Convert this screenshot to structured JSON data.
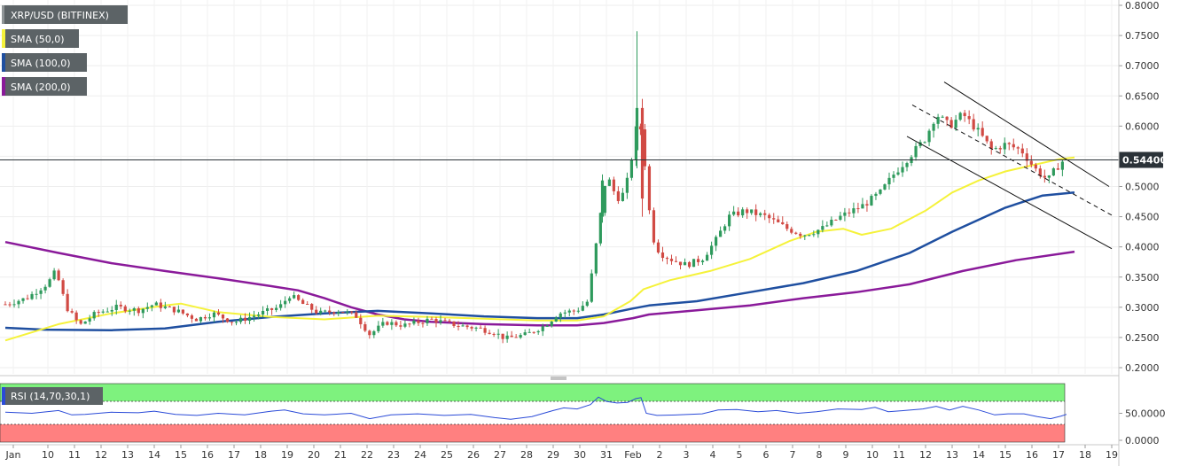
{
  "chart_data": [
    {
      "type": "candlestick",
      "symbol_label": "XRP/USD (BITFINEX)",
      "indicators": [
        {
          "label": "SMA (50,0)",
          "color": "#f5f23a"
        },
        {
          "label": "SMA (100,0)",
          "color": "#1f4fa0"
        },
        {
          "label": "SMA (200,0)",
          "color": "#8a1a9a"
        }
      ],
      "current_price_label": "0.54400",
      "current_price": 0.544,
      "ylim": [
        0.18,
        0.805
      ],
      "xlim": [
        0,
        40.6
      ],
      "y_ticks": [
        {
          "value": 0.8,
          "label": "0.8000"
        },
        {
          "value": 0.75,
          "label": "0.7500"
        },
        {
          "value": 0.7,
          "label": "0.7000"
        },
        {
          "value": 0.65,
          "label": "0.6500"
        },
        {
          "value": 0.6,
          "label": "0.6000"
        },
        {
          "value": 0.55,
          "label": "0.5500"
        },
        {
          "value": 0.5,
          "label": "0.5000"
        },
        {
          "value": 0.45,
          "label": "0.4500"
        },
        {
          "value": 0.4,
          "label": "0.4000"
        },
        {
          "value": 0.35,
          "label": "0.3500"
        },
        {
          "value": 0.3,
          "label": "0.3000"
        },
        {
          "value": 0.25,
          "label": "0.2500"
        },
        {
          "value": 0.2,
          "label": "0.2000"
        }
      ],
      "x_ticks": [
        {
          "x": 0.3,
          "label": "Jan"
        },
        {
          "x": 1.6,
          "label": "10"
        },
        {
          "x": 2.6,
          "label": "11"
        },
        {
          "x": 3.6,
          "label": "12"
        },
        {
          "x": 4.6,
          "label": "13"
        },
        {
          "x": 5.6,
          "label": "14"
        },
        {
          "x": 6.6,
          "label": "15"
        },
        {
          "x": 7.6,
          "label": "16"
        },
        {
          "x": 8.6,
          "label": "17"
        },
        {
          "x": 9.6,
          "label": "18"
        },
        {
          "x": 10.6,
          "label": "19"
        },
        {
          "x": 11.6,
          "label": "20"
        },
        {
          "x": 12.6,
          "label": "21"
        },
        {
          "x": 13.6,
          "label": "22"
        },
        {
          "x": 14.6,
          "label": "23"
        },
        {
          "x": 15.6,
          "label": "24"
        },
        {
          "x": 16.6,
          "label": "25"
        },
        {
          "x": 17.6,
          "label": "26"
        },
        {
          "x": 18.6,
          "label": "27"
        },
        {
          "x": 19.6,
          "label": "28"
        },
        {
          "x": 20.6,
          "label": "29"
        },
        {
          "x": 21.6,
          "label": "30"
        },
        {
          "x": 22.6,
          "label": "31"
        },
        {
          "x": 23.6,
          "label": "Feb"
        },
        {
          "x": 24.6,
          "label": "2"
        },
        {
          "x": 25.6,
          "label": "3"
        },
        {
          "x": 26.6,
          "label": "4"
        },
        {
          "x": 27.6,
          "label": "5"
        },
        {
          "x": 28.6,
          "label": "6"
        },
        {
          "x": 29.6,
          "label": "7"
        },
        {
          "x": 30.6,
          "label": "8"
        },
        {
          "x": 31.6,
          "label": "9"
        },
        {
          "x": 32.6,
          "label": "10"
        },
        {
          "x": 33.6,
          "label": "11"
        },
        {
          "x": 34.6,
          "label": "12"
        },
        {
          "x": 35.6,
          "label": "13"
        },
        {
          "x": 36.6,
          "label": "14"
        },
        {
          "x": 37.6,
          "label": "15"
        },
        {
          "x": 38.6,
          "label": "16"
        },
        {
          "x": 39.6,
          "label": "17"
        },
        {
          "x": 40.6,
          "label": "18"
        },
        {
          "x": 41.6,
          "label": "19"
        }
      ],
      "ohlc_anchors": [
        [
          0.0,
          0.305
        ],
        [
          0.8,
          0.315
        ],
        [
          1.6,
          0.34
        ],
        [
          1.9,
          0.36
        ],
        [
          2.3,
          0.3
        ],
        [
          2.8,
          0.27
        ],
        [
          3.4,
          0.29
        ],
        [
          4.2,
          0.3
        ],
        [
          5.0,
          0.295
        ],
        [
          5.6,
          0.305
        ],
        [
          6.4,
          0.295
        ],
        [
          7.2,
          0.28
        ],
        [
          7.8,
          0.29
        ],
        [
          8.6,
          0.275
        ],
        [
          9.6,
          0.29
        ],
        [
          10.3,
          0.3
        ],
        [
          10.7,
          0.32
        ],
        [
          11.2,
          0.305
        ],
        [
          11.8,
          0.29
        ],
        [
          12.6,
          0.295
        ],
        [
          13.2,
          0.285
        ],
        [
          13.7,
          0.255
        ],
        [
          14.3,
          0.275
        ],
        [
          15.0,
          0.27
        ],
        [
          16.0,
          0.28
        ],
        [
          17.0,
          0.27
        ],
        [
          17.8,
          0.265
        ],
        [
          18.4,
          0.258
        ],
        [
          18.8,
          0.248
        ],
        [
          19.6,
          0.255
        ],
        [
          20.3,
          0.27
        ],
        [
          20.8,
          0.29
        ],
        [
          21.5,
          0.295
        ],
        [
          21.9,
          0.31
        ],
        [
          22.2,
          0.4
        ],
        [
          22.6,
          0.52
        ],
        [
          23.0,
          0.48
        ],
        [
          23.3,
          0.49
        ],
        [
          23.6,
          0.56
        ],
        [
          23.8,
          0.62
        ],
        [
          24.0,
          0.56
        ],
        [
          24.3,
          0.42
        ],
        [
          24.6,
          0.39
        ],
        [
          25.0,
          0.38
        ],
        [
          25.6,
          0.37
        ],
        [
          26.2,
          0.38
        ],
        [
          26.7,
          0.41
        ],
        [
          27.2,
          0.45
        ],
        [
          27.8,
          0.46
        ],
        [
          28.6,
          0.45
        ],
        [
          29.4,
          0.43
        ],
        [
          30.0,
          0.42
        ],
        [
          30.7,
          0.43
        ],
        [
          31.4,
          0.45
        ],
        [
          32.3,
          0.47
        ],
        [
          32.9,
          0.49
        ],
        [
          33.4,
          0.52
        ],
        [
          34.0,
          0.55
        ],
        [
          34.6,
          0.58
        ],
        [
          35.0,
          0.62
        ],
        [
          35.5,
          0.6
        ],
        [
          36.0,
          0.62
        ],
        [
          36.6,
          0.59
        ],
        [
          37.1,
          0.56
        ],
        [
          37.6,
          0.57
        ],
        [
          38.2,
          0.56
        ],
        [
          38.7,
          0.53
        ],
        [
          39.2,
          0.51
        ],
        [
          39.5,
          0.53
        ],
        [
          39.8,
          0.544
        ]
      ],
      "series": [
        {
          "name": "SMA (50,0)",
          "color": "#f5f23a",
          "points": [
            [
              0,
              0.245
            ],
            [
              2,
              0.272
            ],
            [
              4,
              0.29
            ],
            [
              6,
              0.303
            ],
            [
              6.6,
              0.306
            ],
            [
              8,
              0.292
            ],
            [
              10,
              0.284
            ],
            [
              12,
              0.28
            ],
            [
              14,
              0.286
            ],
            [
              16,
              0.284
            ],
            [
              18,
              0.281
            ],
            [
              20,
              0.278
            ],
            [
              21.5,
              0.278
            ],
            [
              22.5,
              0.285
            ],
            [
              23.5,
              0.31
            ],
            [
              24,
              0.33
            ],
            [
              25,
              0.345
            ],
            [
              26.5,
              0.36
            ],
            [
              28,
              0.38
            ],
            [
              29.5,
              0.41
            ],
            [
              30.5,
              0.425
            ],
            [
              31.5,
              0.43
            ],
            [
              32.2,
              0.42
            ],
            [
              33.3,
              0.43
            ],
            [
              34.6,
              0.46
            ],
            [
              35.6,
              0.49
            ],
            [
              36.6,
              0.51
            ],
            [
              37.6,
              0.525
            ],
            [
              38.6,
              0.535
            ],
            [
              39.6,
              0.545
            ],
            [
              40.2,
              0.548
            ]
          ]
        },
        {
          "name": "SMA (100,0)",
          "color": "#1f4fa0",
          "points": [
            [
              0,
              0.266
            ],
            [
              1.5,
              0.263
            ],
            [
              4,
              0.262
            ],
            [
              6,
              0.265
            ],
            [
              8,
              0.276
            ],
            [
              10,
              0.284
            ],
            [
              12,
              0.29
            ],
            [
              14,
              0.294
            ],
            [
              16,
              0.29
            ],
            [
              18,
              0.285
            ],
            [
              20,
              0.282
            ],
            [
              21.5,
              0.282
            ],
            [
              22.5,
              0.288
            ],
            [
              23.6,
              0.298
            ],
            [
              24.2,
              0.303
            ],
            [
              26,
              0.31
            ],
            [
              28,
              0.325
            ],
            [
              30,
              0.34
            ],
            [
              32,
              0.36
            ],
            [
              34,
              0.39
            ],
            [
              35.6,
              0.425
            ],
            [
              37.6,
              0.465
            ],
            [
              39.0,
              0.485
            ],
            [
              40.2,
              0.49
            ]
          ]
        },
        {
          "name": "SMA (200,0)",
          "color": "#8a1a9a",
          "points": [
            [
              0,
              0.408
            ],
            [
              2,
              0.39
            ],
            [
              4,
              0.373
            ],
            [
              6,
              0.36
            ],
            [
              8,
              0.348
            ],
            [
              10,
              0.335
            ],
            [
              11,
              0.328
            ],
            [
              12,
              0.315
            ],
            [
              13,
              0.3
            ],
            [
              14,
              0.288
            ],
            [
              15,
              0.28
            ],
            [
              16,
              0.276
            ],
            [
              18,
              0.272
            ],
            [
              20,
              0.27
            ],
            [
              21.5,
              0.27
            ],
            [
              22.5,
              0.274
            ],
            [
              23.6,
              0.282
            ],
            [
              24.2,
              0.288
            ],
            [
              26,
              0.295
            ],
            [
              28,
              0.303
            ],
            [
              30,
              0.315
            ],
            [
              32,
              0.325
            ],
            [
              34,
              0.338
            ],
            [
              36,
              0.36
            ],
            [
              38,
              0.378
            ],
            [
              40.2,
              0.392
            ]
          ]
        }
      ],
      "channel_lines": [
        {
          "style": "solid",
          "points": [
            [
              35.3,
              0.673
            ],
            [
              41.5,
              0.5
            ]
          ]
        },
        {
          "style": "dashed",
          "points": [
            [
              34.1,
              0.635
            ],
            [
              41.7,
              0.45
            ]
          ]
        },
        {
          "style": "solid",
          "points": [
            [
              33.9,
              0.583
            ],
            [
              41.6,
              0.397
            ]
          ]
        }
      ]
    },
    {
      "type": "line",
      "label": "RSI (14,70,30,1)",
      "overbought": 70,
      "oversold": 30,
      "ylim": [
        -5,
        100
      ],
      "xlim": [
        0,
        40.6
      ],
      "y_ticks": [
        {
          "value": 50,
          "label": "50.0000"
        },
        {
          "value": 0,
          "label": "0.0000"
        }
      ],
      "series": [
        {
          "color": "#2b4bd8",
          "points": [
            [
              0,
              52
            ],
            [
              1,
              50
            ],
            [
              2,
              55
            ],
            [
              2.5,
              47
            ],
            [
              3,
              48
            ],
            [
              4,
              52
            ],
            [
              5,
              51
            ],
            [
              5.6,
              54
            ],
            [
              6.4,
              48
            ],
            [
              7.2,
              46
            ],
            [
              8,
              50
            ],
            [
              9,
              47
            ],
            [
              10,
              54
            ],
            [
              10.5,
              56
            ],
            [
              11.2,
              49
            ],
            [
              12,
              47
            ],
            [
              13,
              50
            ],
            [
              13.7,
              40
            ],
            [
              14.5,
              47
            ],
            [
              15.5,
              49
            ],
            [
              16.5,
              46
            ],
            [
              17.5,
              48
            ],
            [
              18.4,
              42
            ],
            [
              19,
              39
            ],
            [
              19.8,
              44
            ],
            [
              20.6,
              55
            ],
            [
              21.0,
              60
            ],
            [
              21.5,
              58
            ],
            [
              22.0,
              66
            ],
            [
              22.3,
              80
            ],
            [
              22.6,
              72
            ],
            [
              23.0,
              69
            ],
            [
              23.4,
              70
            ],
            [
              23.7,
              77
            ],
            [
              23.9,
              79
            ],
            [
              24.1,
              50
            ],
            [
              24.5,
              46
            ],
            [
              25.3,
              47
            ],
            [
              26.2,
              49
            ],
            [
              26.8,
              56
            ],
            [
              27.5,
              57
            ],
            [
              28.3,
              53
            ],
            [
              29.0,
              55
            ],
            [
              29.8,
              50
            ],
            [
              30.5,
              53
            ],
            [
              31.3,
              58
            ],
            [
              32.2,
              57
            ],
            [
              32.7,
              61
            ],
            [
              33.2,
              53
            ],
            [
              33.8,
              55
            ],
            [
              34.5,
              58
            ],
            [
              35.0,
              63
            ],
            [
              35.5,
              56
            ],
            [
              36.0,
              63
            ],
            [
              36.6,
              56
            ],
            [
              37.2,
              47
            ],
            [
              37.7,
              49
            ],
            [
              38.3,
              49
            ],
            [
              38.8,
              44
            ],
            [
              39.3,
              40
            ],
            [
              39.7,
              45
            ],
            [
              39.9,
              48
            ]
          ]
        }
      ]
    }
  ]
}
